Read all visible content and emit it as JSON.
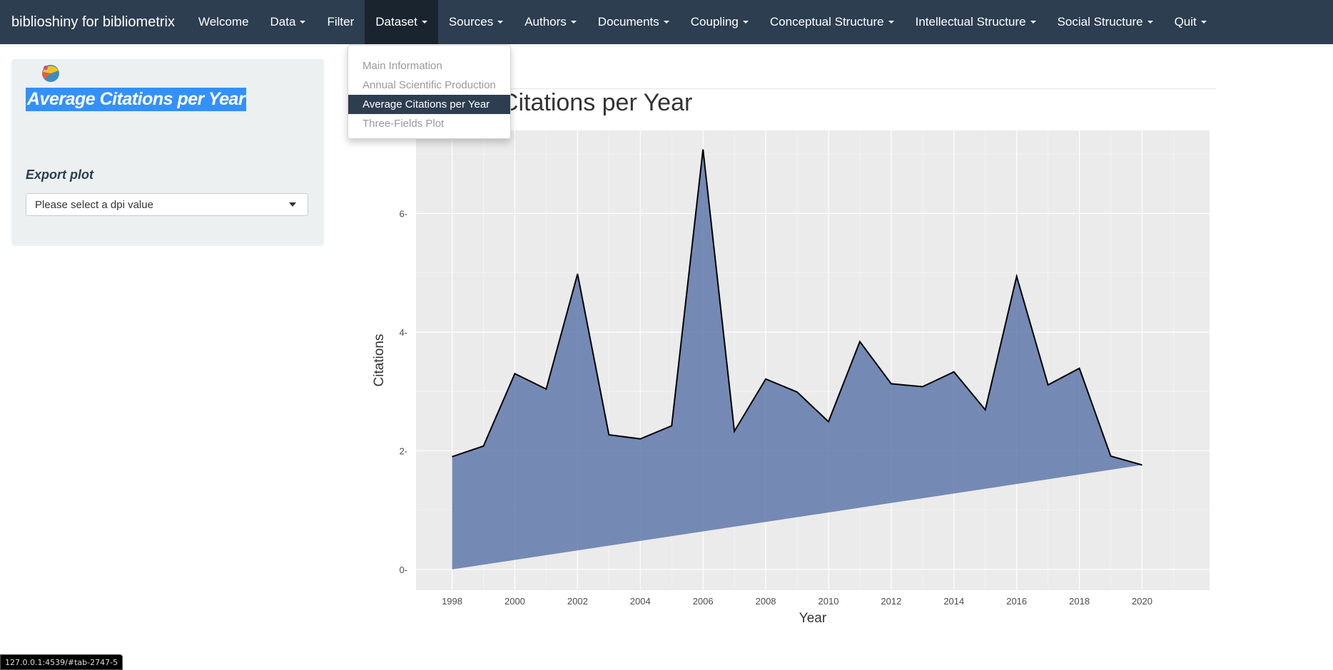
{
  "navbar": {
    "brand": "biblioshiny for bibliometrix",
    "items": [
      {
        "label": "Welcome",
        "caret": false
      },
      {
        "label": "Data",
        "caret": true
      },
      {
        "label": "Filter",
        "caret": false
      },
      {
        "label": "Dataset",
        "caret": true,
        "active": true
      },
      {
        "label": "Sources",
        "caret": true
      },
      {
        "label": "Authors",
        "caret": true
      },
      {
        "label": "Documents",
        "caret": true
      },
      {
        "label": "Coupling",
        "caret": true
      },
      {
        "label": "Conceptual Structure",
        "caret": true
      },
      {
        "label": "Intellectual Structure",
        "caret": true
      },
      {
        "label": "Social Structure",
        "caret": true
      },
      {
        "label": "Quit",
        "caret": true
      }
    ]
  },
  "dropdown": {
    "items": [
      "Main Information",
      "Annual Scientific Production",
      "Average Citations per Year",
      "Three-Fields Plot"
    ],
    "active_index": 2
  },
  "sidebar": {
    "title": "Average Citations per Year",
    "export_label": "Export plot",
    "dpi_placeholder": "Please select a dpi value"
  },
  "status_url": "127.0.0.1:4539/#tab-2747-5",
  "chart_data": {
    "type": "area",
    "title": "Article Citations per Year",
    "title_visible": "Article Citations per Year",
    "xlabel": "Year",
    "ylabel": "Citations",
    "x": [
      1998,
      1999,
      2000,
      2001,
      2002,
      2003,
      2004,
      2005,
      2006,
      2007,
      2008,
      2009,
      2010,
      2011,
      2012,
      2013,
      2014,
      2015,
      2016,
      2017,
      2018,
      2019,
      2020
    ],
    "y": [
      1.9,
      2.08,
      3.3,
      3.04,
      4.98,
      2.27,
      2.2,
      2.42,
      7.08,
      2.33,
      3.21,
      2.99,
      2.49,
      3.84,
      3.13,
      3.08,
      3.33,
      2.69,
      4.94,
      3.11,
      3.39,
      1.91,
      1.76
    ],
    "xticks": [
      1998,
      2000,
      2002,
      2004,
      2006,
      2008,
      2010,
      2012,
      2014,
      2016,
      2018,
      2020
    ],
    "yticks": [
      0,
      2,
      4,
      6
    ],
    "xlim": [
      1996.85,
      2022.15
    ],
    "ylim": [
      -0.35,
      7.4
    ],
    "fill_color": "#5670a6",
    "fill_opacity": 0.8,
    "line_color": "#000000",
    "panel_bg": "#ebebeb",
    "grid": true
  }
}
